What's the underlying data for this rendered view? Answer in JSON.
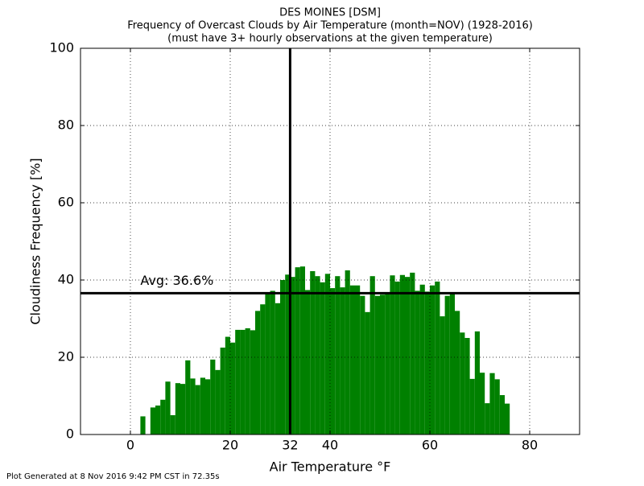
{
  "chart_data": {
    "type": "bar",
    "title": "DES MOINES [DSM]",
    "subtitle": "Frequency of Overcast Clouds by Air Temperature (month=NOV) (1928-2016)",
    "subtitle2": "(must have 3+ hourly observations at the given temperature)",
    "xlabel": "Air Temperature °F",
    "ylabel": "Cloudiness Frequency [%]",
    "footer": "Plot Generated at 8 Nov 2016 9:42 PM CST in 72.35s",
    "annotation": "Avg: 36.6%",
    "avg_line": 36.6,
    "vline": 32,
    "color": "#008000",
    "grid": true,
    "xlim": [
      -10,
      90
    ],
    "xticks": [
      0,
      20,
      32,
      40,
      60,
      80
    ],
    "ylim": [
      0,
      100
    ],
    "yticks": [
      0,
      20,
      40,
      60,
      80,
      100
    ],
    "x": [
      2,
      4,
      5,
      6,
      7,
      8,
      9,
      10,
      11,
      12,
      13,
      14,
      15,
      16,
      17,
      18,
      19,
      20,
      21,
      22,
      23,
      24,
      25,
      26,
      27,
      28,
      29,
      30,
      31,
      32,
      33,
      34,
      35,
      36,
      37,
      38,
      39,
      40,
      41,
      42,
      43,
      44,
      45,
      46,
      47,
      48,
      49,
      50,
      51,
      52,
      53,
      54,
      55,
      56,
      57,
      58,
      59,
      60,
      61,
      62,
      63,
      64,
      65,
      66,
      67,
      68,
      69,
      70,
      71,
      72,
      73,
      74,
      75
    ],
    "values": [
      4.7,
      7.0,
      7.5,
      9.0,
      13.7,
      5.0,
      13.3,
      13.1,
      19.2,
      14.5,
      12.8,
      14.7,
      14.3,
      19.4,
      16.7,
      22.5,
      25.3,
      23.8,
      27.1,
      27.1,
      27.5,
      27.0,
      32.0,
      33.7,
      36.5,
      37.2,
      34.0,
      40.0,
      41.4,
      40.8,
      43.3,
      43.5,
      37.4,
      42.3,
      41.0,
      39.4,
      41.6,
      37.9,
      41.0,
      38.1,
      42.5,
      38.6,
      38.6,
      35.9,
      31.7,
      41.0,
      35.9,
      36.2,
      36.5,
      41.2,
      39.6,
      41.3,
      40.8,
      41.9,
      37.2,
      38.8,
      37.0,
      38.6,
      39.6,
      30.6,
      35.9,
      36.6,
      32.0,
      26.4,
      25.0,
      14.4,
      26.7,
      16.0,
      8.1,
      15.9,
      14.3,
      10.2,
      8.0
    ]
  }
}
